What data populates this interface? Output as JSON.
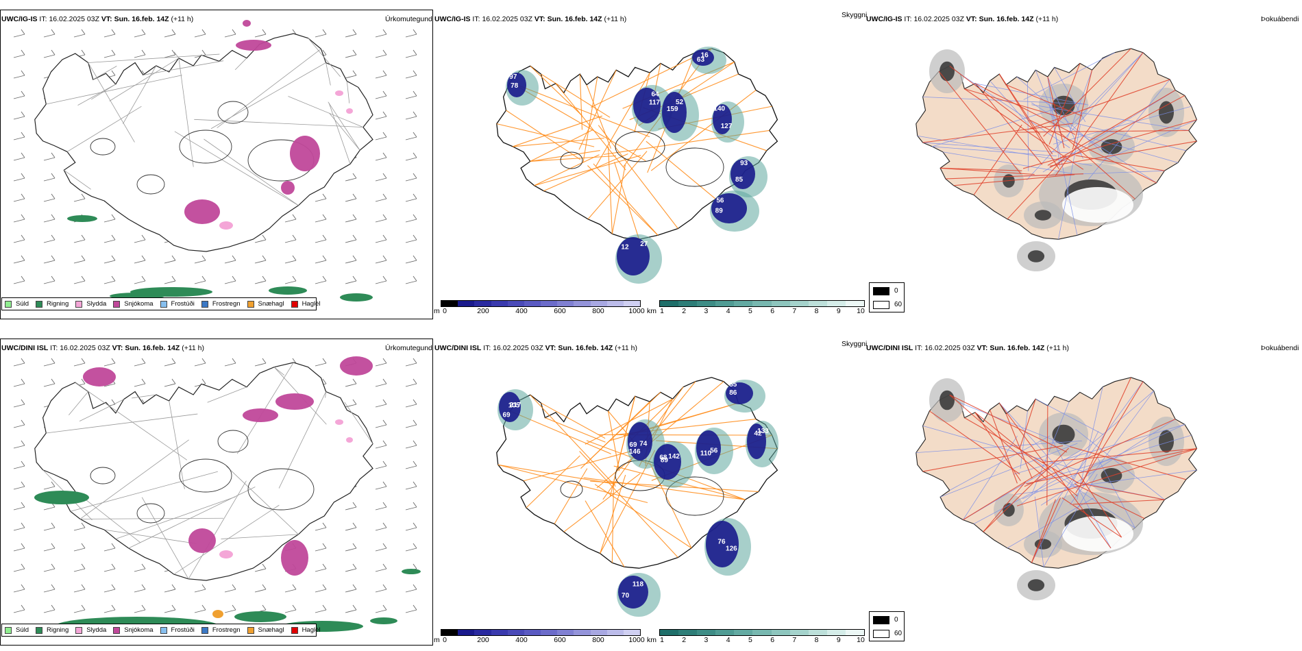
{
  "rows": [
    {
      "model": "UWC/IG-IS",
      "it_label": "IT:",
      "it_value": "16.02.2025 03Z",
      "vt_label": "VT:",
      "vt_value": "Sun. 16.feb. 14Z",
      "lead": "(+11 h)",
      "precip_title": "Úrkomutegund",
      "cloud_title": "Skyggni",
      "fog_title": "Þokuábendi"
    },
    {
      "model": "UWC/DINI ISL",
      "it_label": "IT:",
      "it_value": "16.02.2025 03Z",
      "vt_label": "VT:",
      "vt_value": "Sun. 16.feb. 14Z",
      "lead": "(+11 h)",
      "precip_title": "Úrkomutegund",
      "cloud_title": "Skyggni",
      "fog_title": "Þokuábendi"
    }
  ],
  "precip_legend": [
    {
      "label": "Súld",
      "color": "#90ee90"
    },
    {
      "label": "Rigning",
      "color": "#2e8b57"
    },
    {
      "label": "Slydda",
      "color": "#f4a6d7"
    },
    {
      "label": "Snjókoma",
      "color": "#c0489a"
    },
    {
      "label": "Frostúði",
      "color": "#87bfee"
    },
    {
      "label": "Frostregn",
      "color": "#3b78c4"
    },
    {
      "label": "Snæhagl",
      "color": "#f0a030"
    },
    {
      "label": "Haglél",
      "color": "#e00000"
    }
  ],
  "cloud_base_bar": {
    "unit": "m",
    "ticks": [
      "0",
      "200",
      "400",
      "600",
      "800",
      "1000"
    ],
    "colors": [
      "#000000",
      "#1a1a8c",
      "#2a2aa0",
      "#3a3aae",
      "#4a4ab8",
      "#5a5ac2",
      "#6c6cca",
      "#8080d2",
      "#9494da",
      "#a8a8e2",
      "#bcbcea",
      "#d0d0f2"
    ]
  },
  "visibility_bar": {
    "unit": "km",
    "ticks": [
      "1",
      "2",
      "3",
      "4",
      "5",
      "6",
      "7",
      "8",
      "9",
      "10"
    ],
    "colors": [
      "#1f6f6a",
      "#2e7e78",
      "#3e8d86",
      "#509c94",
      "#63aaa2",
      "#78b8b0",
      "#8ec6be",
      "#a5d3cc",
      "#bde0da",
      "#d5ede9",
      "#ecf7f5"
    ]
  },
  "fog_legend": [
    {
      "label": "0",
      "color": "#000000"
    },
    {
      "label": "60",
      "color": "#ffffff"
    }
  ],
  "cloud_labels_row1": [
    "97",
    "117",
    "159",
    "127",
    "89",
    "12",
    "16",
    "85",
    "78",
    "64",
    "52",
    "140",
    "56",
    "27",
    "63",
    "93"
  ],
  "cloud_labels_row2": [
    "69",
    "74",
    "89",
    "110",
    "126",
    "118",
    "86",
    "133",
    "105",
    "69",
    "68",
    "56",
    "76",
    "70",
    "55",
    "42",
    "217",
    "146",
    "142"
  ],
  "colors": {
    "road": "#ff8c1a",
    "coast": "#000000",
    "land_fog": "#f3dcc8",
    "road_fog": "#e0402a",
    "river": "#7b8ee8"
  }
}
